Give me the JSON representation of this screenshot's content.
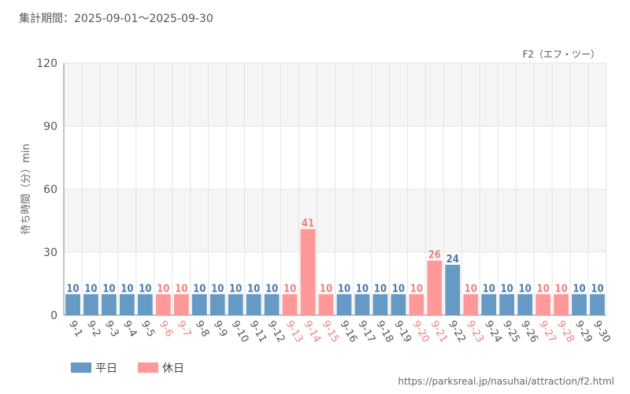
{
  "header": {
    "period": "集計期間：2025-09-01～2025-09-30"
  },
  "footer": {
    "url": "https://parksreal.jp/nasuhai/attraction/f2.html"
  },
  "chart_data": {
    "type": "bar",
    "title": "F2（エフ・ツー）",
    "ylabel": "待ち時間（分）min",
    "xlabel": "",
    "ylim": [
      0,
      120
    ],
    "yticks": [
      "0",
      "30",
      "60",
      "90",
      "120"
    ],
    "categories": [
      "9-1",
      "9-2",
      "9-3",
      "9-4",
      "9-5",
      "9-6",
      "9-7",
      "9-8",
      "9-9",
      "9-10",
      "9-11",
      "9-12",
      "9-13",
      "9-14",
      "9-15",
      "9-16",
      "9-17",
      "9-18",
      "9-19",
      "9-20",
      "9-21",
      "9-22",
      "9-23",
      "9-24",
      "9-25",
      "9-26",
      "9-27",
      "9-28",
      "9-29",
      "9-30"
    ],
    "values": [
      10,
      10,
      10,
      10,
      10,
      10,
      10,
      10,
      10,
      10,
      10,
      10,
      10,
      41,
      10,
      10,
      10,
      10,
      10,
      10,
      26,
      24,
      10,
      10,
      10,
      10,
      10,
      10,
      10,
      10
    ],
    "day_type": [
      "weekday",
      "weekday",
      "weekday",
      "weekday",
      "weekday",
      "holiday",
      "holiday",
      "weekday",
      "weekday",
      "weekday",
      "weekday",
      "weekday",
      "holiday",
      "holiday",
      "holiday",
      "weekday",
      "weekday",
      "weekday",
      "weekday",
      "holiday",
      "holiday",
      "weekday",
      "holiday",
      "weekday",
      "weekday",
      "weekday",
      "holiday",
      "holiday",
      "weekday",
      "weekday"
    ],
    "legend": [
      {
        "key": "weekday",
        "label": "平日"
      },
      {
        "key": "holiday",
        "label": "休日"
      }
    ],
    "legend_position": "bottom-left",
    "grid": true
  },
  "colors": {
    "weekday_bar": "#6699c4",
    "holiday_bar": "#ff9999",
    "weekday_text": "#4a78a8",
    "holiday_text": "#f08080",
    "axis_text": "#555555",
    "grid": "#e5e5e5",
    "band": "#f5f5f5"
  }
}
